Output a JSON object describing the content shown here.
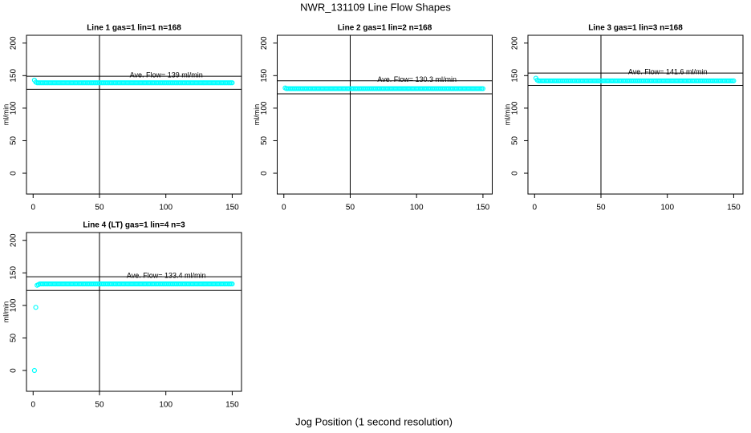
{
  "title": "NWR_131109  Line Flow Shapes",
  "xlabel": "Jog Position (1 second resolution)",
  "chart_data": [
    {
      "type": "scatter",
      "title": "Line 1 gas=1 lin=1 n=168",
      "ylabel": "ml/min",
      "color": "#00ffff",
      "annotation": "Ave. Flow=  139  ml/min",
      "xlim": [
        -5,
        157
      ],
      "ylim": [
        -32,
        212
      ],
      "xticks": [
        0,
        50,
        100,
        150
      ],
      "yticks": [
        0,
        50,
        100,
        150,
        200
      ],
      "hlines": [
        149,
        129
      ],
      "vline": 50,
      "x": [
        1,
        2,
        3,
        4,
        5,
        6,
        7,
        8,
        9,
        10,
        11,
        12,
        13,
        14,
        15,
        16,
        17,
        18,
        19,
        20,
        21,
        22,
        23,
        24,
        25,
        26,
        27,
        28,
        29,
        30,
        31,
        32,
        33,
        34,
        35,
        36,
        37,
        38,
        39,
        40,
        41,
        42,
        43,
        44,
        45,
        46,
        47,
        48,
        49,
        50,
        51,
        52,
        53,
        54,
        55,
        56,
        57,
        58,
        59,
        60,
        61,
        62,
        63,
        64,
        65,
        66,
        67,
        68,
        69,
        70,
        71,
        72,
        73,
        74,
        75,
        76,
        77,
        78,
        79,
        80,
        81,
        82,
        83,
        84,
        85,
        86,
        87,
        88,
        89,
        90,
        91,
        92,
        93,
        94,
        95,
        96,
        97,
        98,
        99,
        100,
        101,
        102,
        103,
        104,
        105,
        106,
        107,
        108,
        109,
        110,
        111,
        112,
        113,
        114,
        115,
        116,
        117,
        118,
        119,
        120,
        121,
        122,
        123,
        124,
        125,
        126,
        127,
        128,
        129,
        130,
        131,
        132,
        133,
        134,
        135,
        136,
        137,
        138,
        139,
        140,
        141,
        142,
        143,
        144,
        145,
        146,
        147,
        148,
        149,
        150
      ],
      "values": [
        143,
        140,
        139,
        139,
        139,
        139,
        139,
        139,
        139,
        139,
        139,
        139,
        139,
        139,
        139,
        139,
        139,
        139,
        139,
        139,
        139,
        139,
        139,
        139,
        139,
        139,
        139,
        139,
        139,
        139,
        139,
        139,
        139,
        139,
        139,
        139,
        139,
        139,
        139,
        139,
        139,
        139,
        139,
        139,
        139,
        139,
        139,
        139,
        139,
        139,
        139,
        139,
        139,
        139,
        139,
        139,
        139,
        139,
        139,
        139,
        139,
        139,
        139,
        139,
        139,
        139,
        139,
        139,
        139,
        139,
        139,
        139,
        139,
        139,
        139,
        139,
        139,
        139,
        139,
        139,
        139,
        139,
        139,
        139,
        139,
        139,
        139,
        139,
        139,
        139,
        139,
        139,
        139,
        139,
        139,
        139,
        139,
        139,
        139,
        139,
        139,
        139,
        139,
        139,
        139,
        139,
        139,
        139,
        139,
        139,
        139,
        139,
        139,
        139,
        139,
        139,
        139,
        139,
        139,
        139,
        139,
        139,
        139,
        139,
        139,
        139,
        139,
        139,
        139,
        139,
        139,
        139,
        139,
        139,
        139,
        139,
        139,
        139,
        139,
        139,
        139,
        139,
        139,
        139,
        139,
        139,
        139,
        139,
        139,
        139
      ]
    },
    {
      "type": "scatter",
      "title": "Line 2 gas=1 lin=2 n=168",
      "ylabel": "ml/min",
      "color": "#00ffff",
      "annotation": "Ave. Flow=  130.3  ml/min",
      "xlim": [
        -5,
        157
      ],
      "ylim": [
        -32,
        212
      ],
      "xticks": [
        0,
        50,
        100,
        150
      ],
      "yticks": [
        0,
        50,
        100,
        150,
        200
      ],
      "hlines": [
        142,
        122
      ],
      "vline": 50,
      "x": [
        1,
        2,
        3,
        4,
        5,
        6,
        7,
        8,
        9,
        10,
        11,
        12,
        13,
        14,
        15,
        16,
        17,
        18,
        19,
        20,
        21,
        22,
        23,
        24,
        25,
        26,
        27,
        28,
        29,
        30,
        31,
        32,
        33,
        34,
        35,
        36,
        37,
        38,
        39,
        40,
        41,
        42,
        43,
        44,
        45,
        46,
        47,
        48,
        49,
        50,
        51,
        52,
        53,
        54,
        55,
        56,
        57,
        58,
        59,
        60,
        61,
        62,
        63,
        64,
        65,
        66,
        67,
        68,
        69,
        70,
        71,
        72,
        73,
        74,
        75,
        76,
        77,
        78,
        79,
        80,
        81,
        82,
        83,
        84,
        85,
        86,
        87,
        88,
        89,
        90,
        91,
        92,
        93,
        94,
        95,
        96,
        97,
        98,
        99,
        100,
        101,
        102,
        103,
        104,
        105,
        106,
        107,
        108,
        109,
        110,
        111,
        112,
        113,
        114,
        115,
        116,
        117,
        118,
        119,
        120,
        121,
        122,
        123,
        124,
        125,
        126,
        127,
        128,
        129,
        130,
        131,
        132,
        133,
        134,
        135,
        136,
        137,
        138,
        139,
        140,
        141,
        142,
        143,
        144,
        145,
        146,
        147,
        148,
        149,
        150
      ],
      "values": [
        131,
        130,
        130,
        130,
        130,
        130,
        130,
        130,
        130,
        130,
        130,
        130,
        130,
        130,
        130,
        130,
        130,
        130,
        130,
        130,
        130,
        130,
        130,
        130,
        130,
        130,
        130,
        130,
        130,
        130,
        130,
        130,
        130,
        130,
        130,
        130,
        130,
        130,
        130,
        130,
        130,
        130,
        130,
        130,
        130,
        130,
        130,
        130,
        130,
        130,
        130,
        130,
        130,
        130,
        130,
        130,
        130,
        130,
        130,
        130,
        130,
        130,
        130,
        130,
        130,
        130,
        130,
        130,
        130,
        130,
        130,
        130,
        130,
        130,
        130,
        130,
        130,
        130,
        130,
        130,
        130,
        130,
        130,
        130,
        130,
        130,
        130,
        130,
        130,
        130,
        130,
        130,
        130,
        130,
        130,
        130,
        130,
        130,
        130,
        130,
        130,
        130,
        130,
        130,
        130,
        130,
        130,
        130,
        130,
        130,
        130,
        130,
        130,
        130,
        130,
        130,
        130,
        130,
        130,
        130,
        130,
        130,
        130,
        130,
        130,
        130,
        130,
        130,
        130,
        130,
        130,
        130,
        130,
        130,
        130,
        130,
        130,
        130,
        130,
        130,
        130,
        130,
        130,
        130,
        130,
        130,
        130,
        130,
        130,
        130
      ]
    },
    {
      "type": "scatter",
      "title": "Line 3 gas=1 lin=3 n=168",
      "ylabel": "ml/min",
      "color": "#00ffff",
      "annotation": "Ave. Flow=  141.6  ml/min",
      "xlim": [
        -5,
        157
      ],
      "ylim": [
        -32,
        212
      ],
      "xticks": [
        0,
        50,
        100,
        150
      ],
      "yticks": [
        0,
        50,
        100,
        150,
        200
      ],
      "hlines": [
        154,
        135
      ],
      "vline": 50,
      "x": [
        1,
        2,
        3,
        4,
        5,
        6,
        7,
        8,
        9,
        10,
        11,
        12,
        13,
        14,
        15,
        16,
        17,
        18,
        19,
        20,
        21,
        22,
        23,
        24,
        25,
        26,
        27,
        28,
        29,
        30,
        31,
        32,
        33,
        34,
        35,
        36,
        37,
        38,
        39,
        40,
        41,
        42,
        43,
        44,
        45,
        46,
        47,
        48,
        49,
        50,
        51,
        52,
        53,
        54,
        55,
        56,
        57,
        58,
        59,
        60,
        61,
        62,
        63,
        64,
        65,
        66,
        67,
        68,
        69,
        70,
        71,
        72,
        73,
        74,
        75,
        76,
        77,
        78,
        79,
        80,
        81,
        82,
        83,
        84,
        85,
        86,
        87,
        88,
        89,
        90,
        91,
        92,
        93,
        94,
        95,
        96,
        97,
        98,
        99,
        100,
        101,
        102,
        103,
        104,
        105,
        106,
        107,
        108,
        109,
        110,
        111,
        112,
        113,
        114,
        115,
        116,
        117,
        118,
        119,
        120,
        121,
        122,
        123,
        124,
        125,
        126,
        127,
        128,
        129,
        130,
        131,
        132,
        133,
        134,
        135,
        136,
        137,
        138,
        139,
        140,
        141,
        142,
        143,
        144,
        145,
        146,
        147,
        148,
        149,
        150
      ],
      "values": [
        146,
        143,
        142,
        142,
        142,
        142,
        142,
        142,
        142,
        142,
        142,
        142,
        142,
        142,
        142,
        142,
        142,
        142,
        142,
        142,
        142,
        142,
        142,
        142,
        142,
        142,
        142,
        142,
        142,
        142,
        142,
        142,
        142,
        142,
        142,
        142,
        142,
        142,
        142,
        142,
        142,
        142,
        142,
        142,
        142,
        142,
        142,
        142,
        142,
        142,
        142,
        142,
        142,
        142,
        142,
        142,
        142,
        142,
        142,
        142,
        142,
        142,
        142,
        142,
        142,
        142,
        142,
        142,
        142,
        142,
        142,
        142,
        142,
        142,
        142,
        142,
        142,
        142,
        142,
        142,
        142,
        142,
        142,
        142,
        142,
        142,
        142,
        142,
        142,
        142,
        142,
        142,
        142,
        142,
        142,
        142,
        142,
        142,
        142,
        142,
        142,
        142,
        142,
        142,
        142,
        142,
        142,
        142,
        142,
        142,
        142,
        142,
        142,
        142,
        142,
        142,
        142,
        142,
        142,
        142,
        142,
        142,
        142,
        142,
        142,
        142,
        142,
        142,
        142,
        142,
        142,
        142,
        142,
        142,
        142,
        142,
        142,
        142,
        142,
        142,
        142,
        142,
        142,
        142,
        142,
        142,
        142,
        142,
        142,
        142
      ]
    },
    {
      "type": "scatter",
      "title": "Line 4 (LT) gas=1 lin=4 n=3",
      "ylabel": "ml/min",
      "color": "#00ffff",
      "annotation": "Ave. Flow=  133.4  ml/min",
      "xlim": [
        -5,
        157
      ],
      "ylim": [
        -32,
        212
      ],
      "xticks": [
        0,
        50,
        100,
        150
      ],
      "yticks": [
        0,
        50,
        100,
        150,
        200
      ],
      "hlines": [
        144,
        123
      ],
      "vline": 50,
      "x": [
        1,
        2,
        3,
        4,
        5,
        6,
        7,
        8,
        9,
        10,
        11,
        12,
        13,
        14,
        15,
        16,
        17,
        18,
        19,
        20,
        21,
        22,
        23,
        24,
        25,
        26,
        27,
        28,
        29,
        30,
        31,
        32,
        33,
        34,
        35,
        36,
        37,
        38,
        39,
        40,
        41,
        42,
        43,
        44,
        45,
        46,
        47,
        48,
        49,
        50,
        51,
        52,
        53,
        54,
        55,
        56,
        57,
        58,
        59,
        60,
        61,
        62,
        63,
        64,
        65,
        66,
        67,
        68,
        69,
        70,
        71,
        72,
        73,
        74,
        75,
        76,
        77,
        78,
        79,
        80,
        81,
        82,
        83,
        84,
        85,
        86,
        87,
        88,
        89,
        90,
        91,
        92,
        93,
        94,
        95,
        96,
        97,
        98,
        99,
        100,
        101,
        102,
        103,
        104,
        105,
        106,
        107,
        108,
        109,
        110,
        111,
        112,
        113,
        114,
        115,
        116,
        117,
        118,
        119,
        120,
        121,
        122,
        123,
        124,
        125,
        126,
        127,
        128,
        129,
        130,
        131,
        132,
        133,
        134,
        135,
        136,
        137,
        138,
        139,
        140,
        141,
        142,
        143,
        144,
        145,
        146,
        147,
        148,
        149,
        150
      ],
      "values": [
        0,
        97,
        131,
        132,
        133,
        133,
        133,
        133,
        133,
        133,
        133,
        133,
        133,
        133,
        133,
        133,
        133,
        133,
        133,
        133,
        133,
        133,
        133,
        133,
        133,
        133,
        133,
        133,
        133,
        133,
        133,
        133,
        133,
        133,
        133,
        133,
        133,
        133,
        133,
        133,
        133,
        133,
        133,
        133,
        133,
        133,
        133,
        133,
        133,
        133,
        133,
        133,
        133,
        133,
        133,
        133,
        133,
        133,
        133,
        133,
        133,
        133,
        133,
        133,
        133,
        133,
        133,
        133,
        133,
        133,
        133,
        133,
        133,
        133,
        133,
        133,
        133,
        133,
        133,
        133,
        133,
        133,
        133,
        133,
        133,
        133,
        133,
        133,
        133,
        133,
        133,
        133,
        133,
        133,
        133,
        133,
        133,
        133,
        133,
        133,
        133,
        133,
        133,
        133,
        133,
        133,
        133,
        133,
        133,
        133,
        133,
        133,
        133,
        133,
        133,
        133,
        133,
        133,
        133,
        133,
        133,
        133,
        133,
        133,
        133,
        133,
        133,
        133,
        133,
        133,
        133,
        133,
        133,
        133,
        133,
        133,
        133,
        133,
        133,
        133,
        133,
        133,
        133,
        133,
        133,
        133,
        133,
        133,
        133,
        133
      ]
    }
  ]
}
